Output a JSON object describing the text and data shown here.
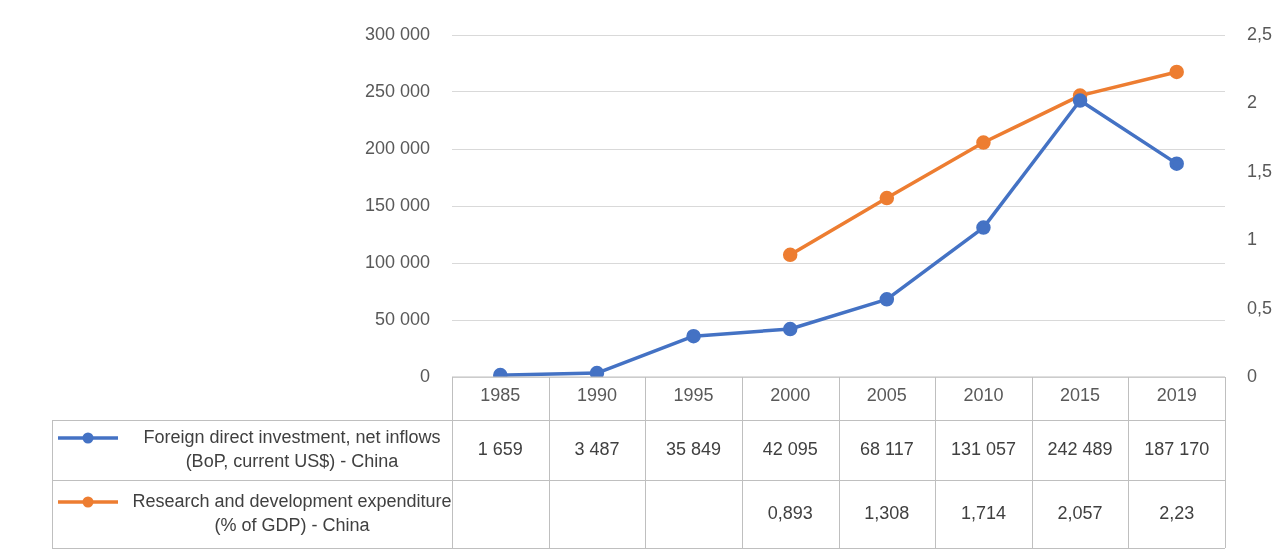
{
  "chart_data": {
    "type": "line",
    "categories": [
      "1985",
      "1990",
      "1995",
      "2000",
      "2005",
      "2010",
      "2015",
      "2019"
    ],
    "series": [
      {
        "name": "Foreign direct investment, net inflows (BoP, current US$) - China",
        "color": "#4472c4",
        "values": [
          1659,
          3487,
          35849,
          42095,
          68117,
          131057,
          242489,
          187170
        ],
        "value_labels": [
          "1 659",
          "3 487",
          "35 849",
          "42 095",
          "68 117",
          "131 057",
          "242 489",
          "187 170"
        ]
      },
      {
        "name": "Research and development expenditure (% of GDP) - China",
        "color": "#ed7d31",
        "axis": "y2",
        "values": [
          null,
          null,
          null,
          0.893,
          1.308,
          1.714,
          2.057,
          2.23
        ],
        "value_labels": [
          null,
          null,
          null,
          "0,893",
          "1,308",
          "1,714",
          "2,057",
          "2,23"
        ]
      }
    ],
    "ylim": [
      0,
      300000
    ],
    "yticks": [
      0,
      {
        "value": 50000,
        "label": "50 000"
      },
      {
        "value": 100000,
        "label": "100 000"
      },
      {
        "value": 150000,
        "label": "150 000"
      },
      {
        "value": 200000,
        "label": "200 000"
      },
      {
        "value": 250000,
        "label": "250 000"
      },
      {
        "value": 300000,
        "label": "300 000"
      }
    ],
    "y2lim": [
      0,
      2.5
    ],
    "y2ticks": [
      0,
      {
        "value": 0.5,
        "label": "0,5"
      },
      1,
      {
        "value": 1.5,
        "label": "1,5"
      },
      2,
      {
        "value": 2.5,
        "label": "2,5"
      }
    ],
    "grid": "y",
    "legend": "bottom",
    "marker": "circle",
    "line_style": "solid"
  }
}
